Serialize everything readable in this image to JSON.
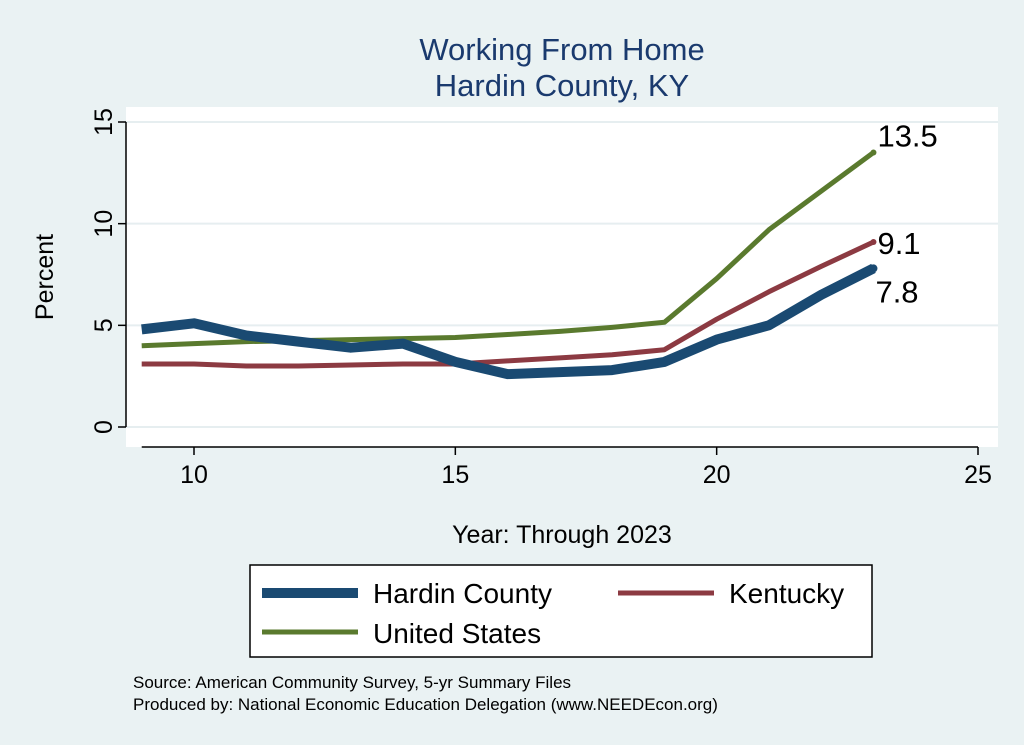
{
  "chart_data": {
    "type": "line",
    "title": [
      "Working From Home",
      "Hardin County, KY"
    ],
    "xlabel": "Year: Through 2023",
    "ylabel": "Percent",
    "xlim": [
      8.7,
      25.2
    ],
    "ylim": [
      0,
      15
    ],
    "xticks": [
      10,
      15,
      20,
      25
    ],
    "yticks": [
      0,
      5,
      10,
      15
    ],
    "grid": true,
    "legend_position": "bottom",
    "x": [
      9,
      10,
      11,
      12,
      13,
      14,
      15,
      16,
      17,
      18,
      19,
      20,
      21,
      22,
      23
    ],
    "series": [
      {
        "name": "Hardin County",
        "color": "#1a4a72",
        "values": [
          4.8,
          5.1,
          4.5,
          4.2,
          3.9,
          4.1,
          3.2,
          2.6,
          2.7,
          2.8,
          3.2,
          4.3,
          5.0,
          6.5,
          7.8
        ],
        "end_label": "7.8"
      },
      {
        "name": "Kentucky",
        "color": "#8c3a42",
        "values": [
          3.1,
          3.1,
          3.0,
          3.0,
          3.05,
          3.1,
          3.1,
          3.25,
          3.4,
          3.55,
          3.8,
          5.3,
          6.65,
          7.9,
          9.1
        ],
        "end_label": "9.1"
      },
      {
        "name": "United States",
        "color": "#5a7a2e",
        "values": [
          4.0,
          4.1,
          4.2,
          4.25,
          4.3,
          4.35,
          4.4,
          4.55,
          4.7,
          4.9,
          5.15,
          7.3,
          9.7,
          11.6,
          13.5
        ],
        "end_label": "13.5"
      }
    ]
  },
  "legend": {
    "items": [
      {
        "label": "Hardin County",
        "color": "#1a4a72"
      },
      {
        "label": "Kentucky",
        "color": "#8c3a42"
      },
      {
        "label": "United States",
        "color": "#5a7a2e"
      }
    ]
  },
  "notes": {
    "source": "Source: American Community Survey, 5-yr Summary Files",
    "produced_by": "Produced by: National Economic Education Delegation (www.NEEDEcon.org)"
  }
}
